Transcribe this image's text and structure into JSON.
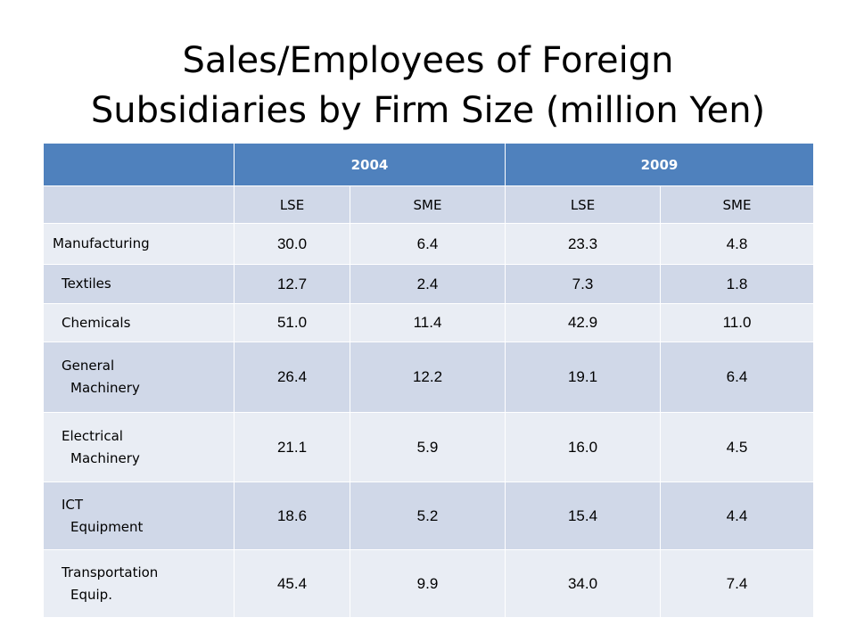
{
  "title": [
    "Sales/Employees of Foreign",
    "Subsidiaries by Firm Size (million Yen)"
  ],
  "table": {
    "header": [
      "2004",
      "2009"
    ],
    "subheader": [
      "LSE",
      "SME",
      "LSE",
      "SME"
    ],
    "rows": [
      {
        "label": [
          "Manufacturing"
        ],
        "values": [
          "30.0",
          "6.4",
          "23.3",
          "4.8"
        ]
      },
      {
        "label": [
          "Textiles"
        ],
        "values": [
          "12.7",
          "2.4",
          "7.3",
          "1.8"
        ]
      },
      {
        "label": [
          "Chemicals"
        ],
        "values": [
          "51.0",
          "11.4",
          "42.9",
          "11.0"
        ]
      },
      {
        "label": [
          "General",
          "Machinery"
        ],
        "values": [
          "26.4",
          "12.2",
          "19.1",
          "6.4"
        ]
      },
      {
        "label": [
          "Electrical",
          "Machinery"
        ],
        "values": [
          "21.1",
          "5.9",
          "16.0",
          "4.5"
        ]
      },
      {
        "label": [
          "ICT",
          "Equipment"
        ],
        "values": [
          "18.6",
          "5.2",
          "15.4",
          "4.4"
        ]
      },
      {
        "label": [
          "Transportation",
          "Equip."
        ],
        "values": [
          "45.4",
          "9.9",
          "34.0",
          "7.4"
        ]
      }
    ]
  }
}
